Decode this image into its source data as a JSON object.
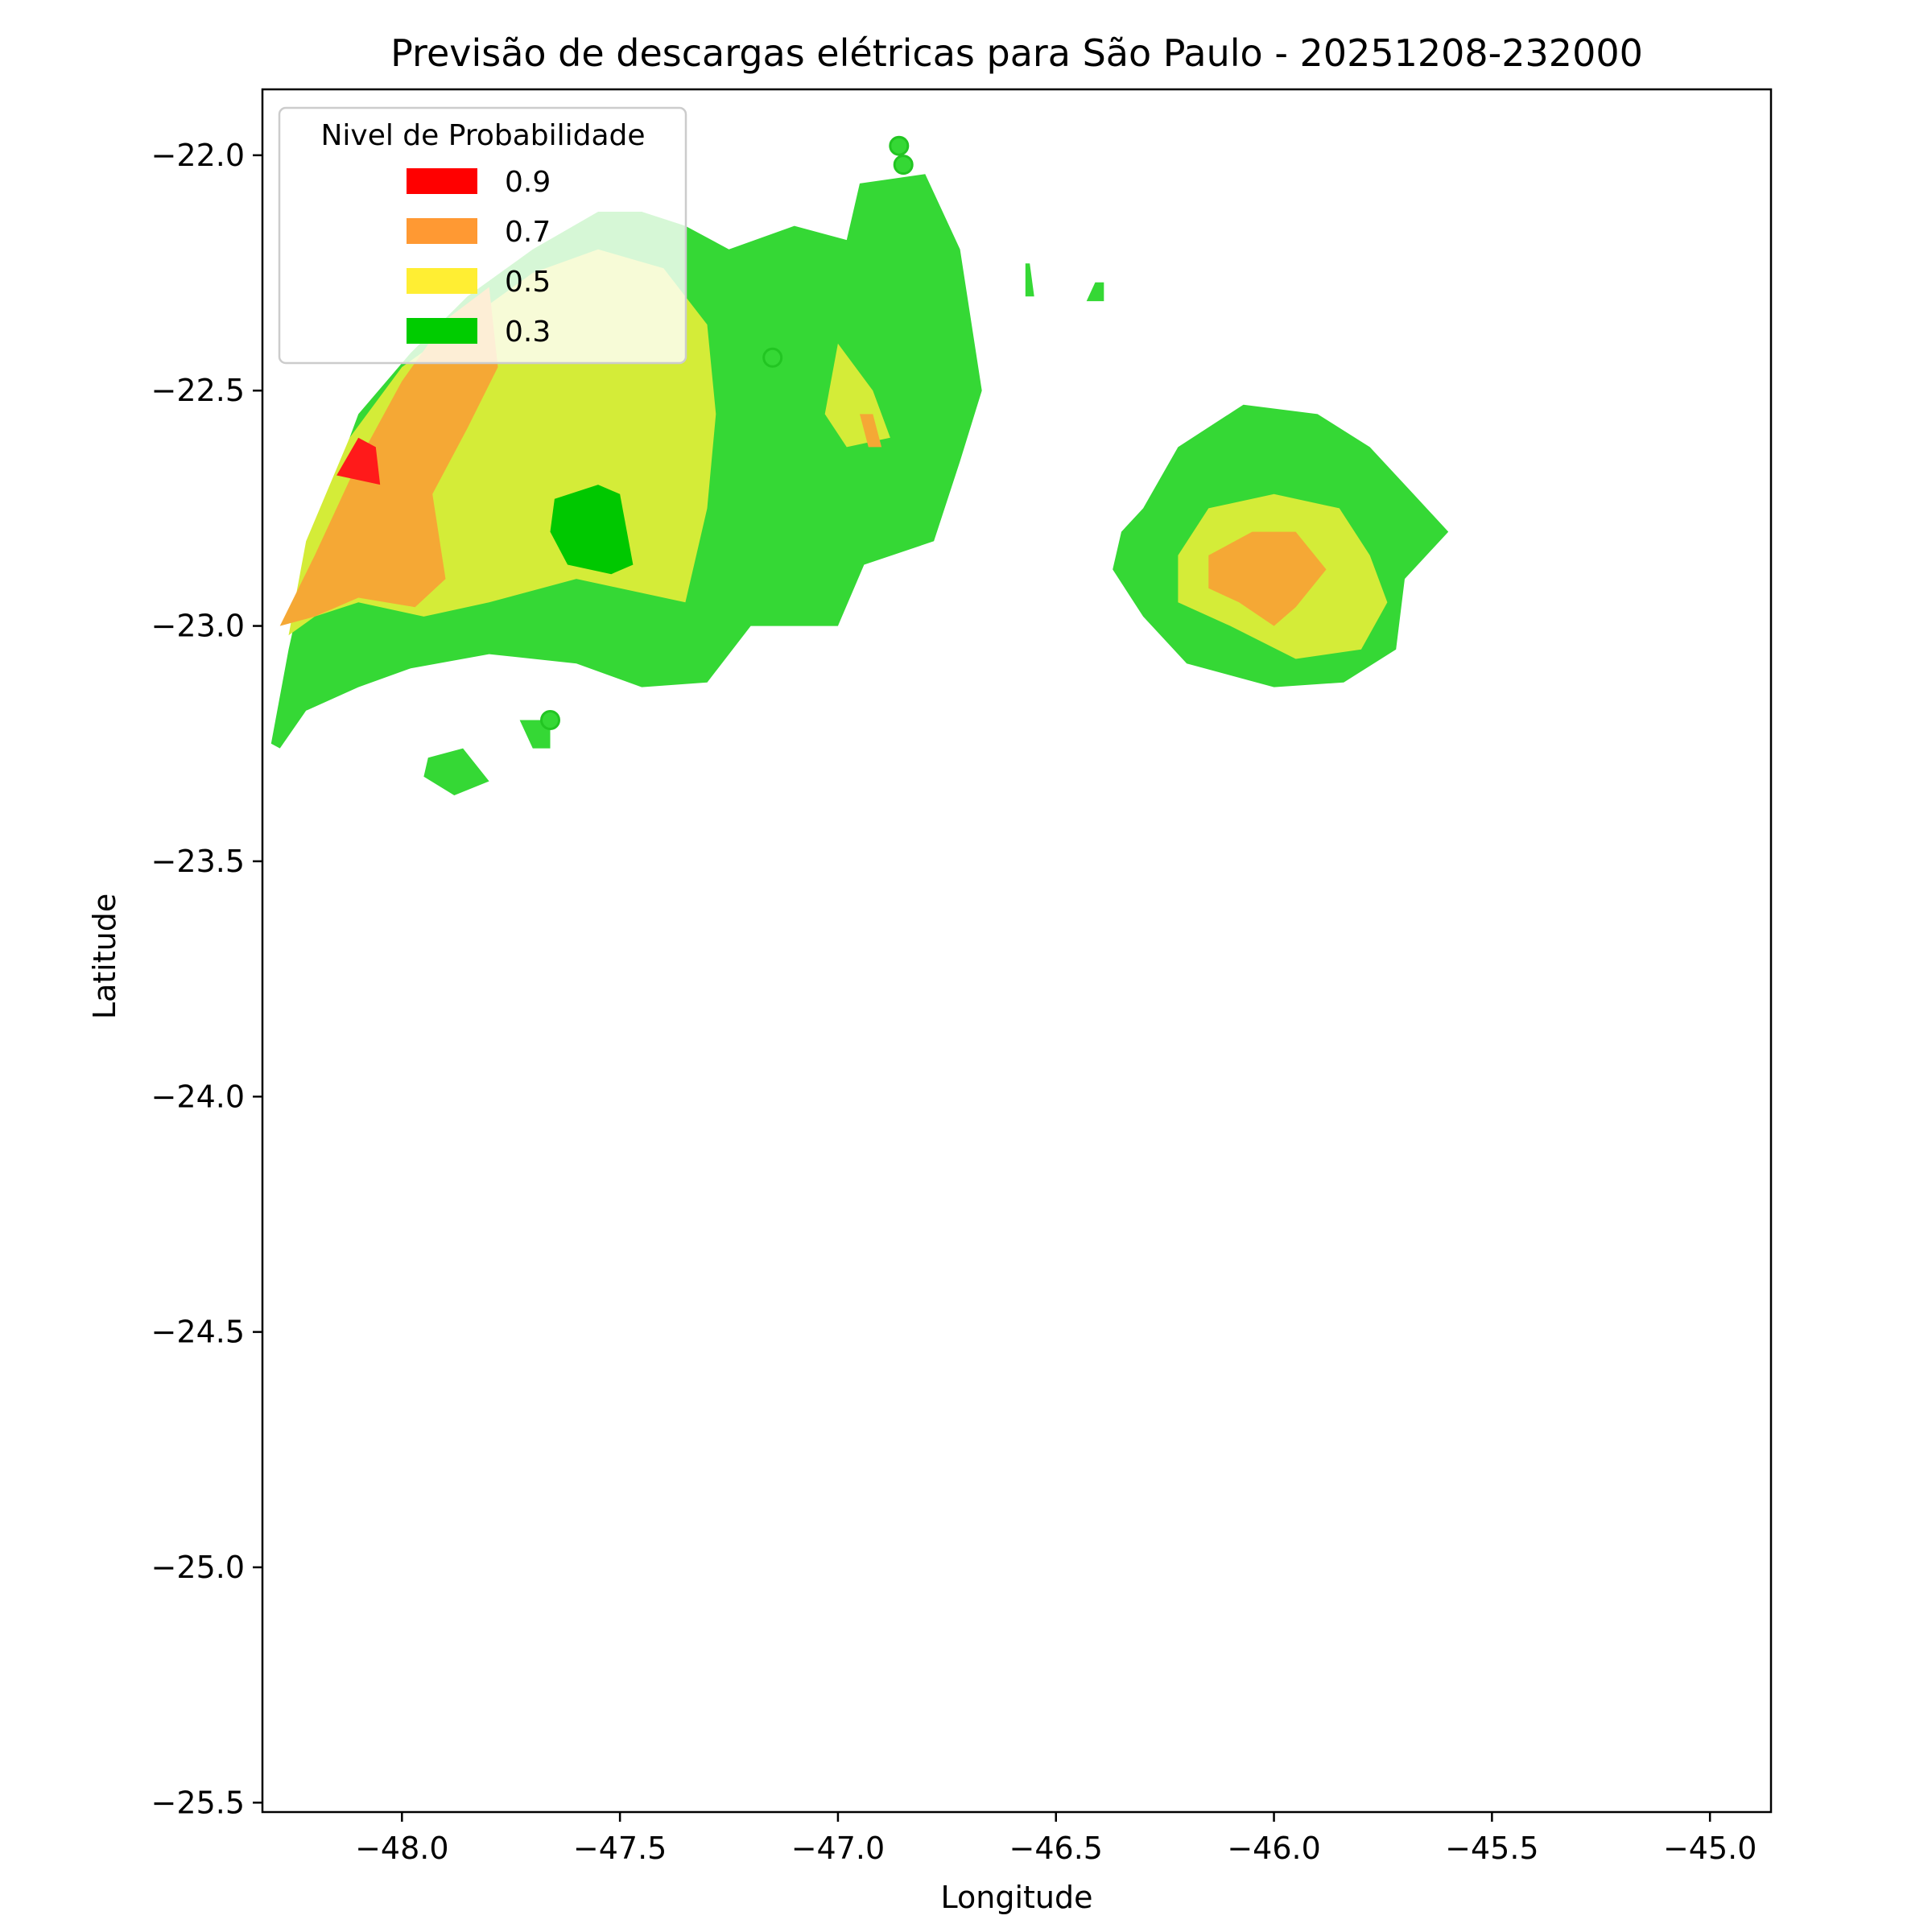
{
  "chart_data": {
    "type": "heatmap",
    "title": "Previsão de descargas elétricas para São Paulo - 20251208-232000",
    "xlabel": "Longitude",
    "ylabel": "Latitude",
    "xlim": [
      -48.32,
      -44.86
    ],
    "ylim": [
      -25.52,
      -21.86
    ],
    "x_ticks": [
      -48.0,
      -47.5,
      -47.0,
      -46.5,
      -46.0,
      -45.5,
      -45.0
    ],
    "x_tick_labels": [
      "−48.0",
      "−47.5",
      "−47.0",
      "−46.5",
      "−46.0",
      "−45.5",
      "−45.0"
    ],
    "y_ticks": [
      -22.0,
      -22.5,
      -23.0,
      -23.5,
      -24.0,
      -24.5,
      -25.0,
      -25.5
    ],
    "y_tick_labels": [
      "−22.0",
      "−22.5",
      "−23.0",
      "−23.5",
      "−24.0",
      "−24.5",
      "−25.0",
      "−25.5"
    ],
    "grid": false,
    "legend": {
      "title": "Nivel de Probabilidade",
      "placement": "upper-left",
      "entries": [
        {
          "label": "0.9",
          "color": "#ff0000"
        },
        {
          "label": "0.7",
          "color": "#ff9933"
        },
        {
          "label": "0.5",
          "color": "#ffee33"
        },
        {
          "label": "0.3",
          "color": "#00cc00"
        }
      ]
    },
    "levels": [
      {
        "level": 0.3,
        "color": "#35d835",
        "regions": [
          {
            "name": "west-storm-outer",
            "polygon": [
              [
                -48.3,
                -23.25
              ],
              [
                -48.26,
                -23.05
              ],
              [
                -48.2,
                -22.8
              ],
              [
                -48.1,
                -22.55
              ],
              [
                -47.98,
                -22.42
              ],
              [
                -47.85,
                -22.3
              ],
              [
                -47.7,
                -22.2
              ],
              [
                -47.55,
                -22.12
              ],
              [
                -47.45,
                -22.12
              ],
              [
                -47.35,
                -22.15
              ],
              [
                -47.25,
                -22.2
              ],
              [
                -47.1,
                -22.15
              ],
              [
                -46.98,
                -22.18
              ],
              [
                -46.95,
                -22.06
              ],
              [
                -46.8,
                -22.04
              ],
              [
                -46.72,
                -22.2
              ],
              [
                -46.67,
                -22.5
              ],
              [
                -46.72,
                -22.65
              ],
              [
                -46.78,
                -22.82
              ],
              [
                -46.94,
                -22.87
              ],
              [
                -47.0,
                -23.0
              ],
              [
                -47.2,
                -23.0
              ],
              [
                -47.3,
                -23.12
              ],
              [
                -47.45,
                -23.13
              ],
              [
                -47.6,
                -23.08
              ],
              [
                -47.8,
                -23.06
              ],
              [
                -47.98,
                -23.09
              ],
              [
                -48.1,
                -23.13
              ],
              [
                -48.22,
                -23.18
              ],
              [
                -48.28,
                -23.26
              ]
            ]
          },
          {
            "name": "east-storm-outer",
            "polygon": [
              [
                -46.3,
                -22.75
              ],
              [
                -46.22,
                -22.62
              ],
              [
                -46.07,
                -22.53
              ],
              [
                -45.9,
                -22.55
              ],
              [
                -45.78,
                -22.62
              ],
              [
                -45.68,
                -22.72
              ],
              [
                -45.6,
                -22.8
              ],
              [
                -45.7,
                -22.9
              ],
              [
                -45.72,
                -23.05
              ],
              [
                -45.84,
                -23.12
              ],
              [
                -46.0,
                -23.13
              ],
              [
                -46.2,
                -23.08
              ],
              [
                -46.3,
                -22.98
              ],
              [
                -46.37,
                -22.88
              ],
              [
                -46.35,
                -22.8
              ]
            ]
          },
          {
            "name": "south-fragment-1",
            "polygon": [
              [
                -47.94,
                -23.28
              ],
              [
                -47.86,
                -23.26
              ],
              [
                -47.8,
                -23.33
              ],
              [
                -47.88,
                -23.36
              ],
              [
                -47.95,
                -23.32
              ]
            ]
          },
          {
            "name": "south-fragment-2",
            "polygon": [
              [
                -47.73,
                -23.2
              ],
              [
                -47.66,
                -23.2
              ],
              [
                -47.66,
                -23.26
              ],
              [
                -47.7,
                -23.26
              ]
            ]
          },
          {
            "name": "north-fragment-1",
            "polygon": [
              [
                -46.57,
                -22.23
              ],
              [
                -46.56,
                -22.23
              ],
              [
                -46.55,
                -22.3
              ],
              [
                -46.57,
                -22.3
              ]
            ]
          },
          {
            "name": "north-fragment-2",
            "polygon": [
              [
                -46.41,
                -22.27
              ],
              [
                -46.39,
                -22.27
              ],
              [
                -46.39,
                -22.31
              ],
              [
                -46.43,
                -22.31
              ]
            ]
          }
        ],
        "dots": [
          [
            -46.86,
            -21.98
          ],
          [
            -46.85,
            -22.02
          ],
          [
            -47.15,
            -22.43
          ],
          [
            -47.66,
            -23.2
          ]
        ]
      },
      {
        "level": 0.5,
        "color": "#d4ec38",
        "regions": [
          {
            "name": "west-storm-yellow",
            "polygon": [
              [
                -48.26,
                -23.02
              ],
              [
                -48.22,
                -22.82
              ],
              [
                -48.12,
                -22.6
              ],
              [
                -48.0,
                -22.45
              ],
              [
                -47.85,
                -22.35
              ],
              [
                -47.7,
                -22.25
              ],
              [
                -47.55,
                -22.2
              ],
              [
                -47.4,
                -22.24
              ],
              [
                -47.3,
                -22.36
              ],
              [
                -47.28,
                -22.55
              ],
              [
                -47.3,
                -22.75
              ],
              [
                -47.35,
                -22.95
              ],
              [
                -47.6,
                -22.9
              ],
              [
                -47.8,
                -22.95
              ],
              [
                -47.95,
                -22.98
              ],
              [
                -48.1,
                -22.95
              ],
              [
                -48.2,
                -22.98
              ]
            ]
          },
          {
            "name": "east-storm-yellow",
            "polygon": [
              [
                -46.22,
                -22.85
              ],
              [
                -46.15,
                -22.75
              ],
              [
                -46.0,
                -22.72
              ],
              [
                -45.85,
                -22.75
              ],
              [
                -45.78,
                -22.85
              ],
              [
                -45.74,
                -22.95
              ],
              [
                -45.8,
                -23.05
              ],
              [
                -45.95,
                -23.07
              ],
              [
                -46.1,
                -23.0
              ],
              [
                -46.22,
                -22.95
              ]
            ]
          },
          {
            "name": "central-yellow-streak",
            "polygon": [
              [
                -47.0,
                -22.4
              ],
              [
                -46.92,
                -22.5
              ],
              [
                -46.88,
                -22.6
              ],
              [
                -46.98,
                -22.62
              ],
              [
                -47.03,
                -22.55
              ]
            ]
          }
        ]
      },
      {
        "level": 0.7,
        "color": "#f5a835",
        "regions": [
          {
            "name": "west-storm-orange",
            "polygon": [
              [
                -48.28,
                -23.0
              ],
              [
                -48.2,
                -22.85
              ],
              [
                -48.1,
                -22.65
              ],
              [
                -48.0,
                -22.48
              ],
              [
                -47.9,
                -22.35
              ],
              [
                -47.8,
                -22.28
              ],
              [
                -47.78,
                -22.45
              ],
              [
                -47.85,
                -22.58
              ],
              [
                -47.93,
                -22.72
              ],
              [
                -47.9,
                -22.9
              ],
              [
                -47.97,
                -22.96
              ],
              [
                -48.1,
                -22.94
              ],
              [
                -48.2,
                -22.98
              ]
            ]
          },
          {
            "name": "east-storm-orange",
            "polygon": [
              [
                -46.15,
                -22.85
              ],
              [
                -46.05,
                -22.8
              ],
              [
                -45.95,
                -22.8
              ],
              [
                -45.88,
                -22.88
              ],
              [
                -45.95,
                -22.96
              ],
              [
                -46.0,
                -23.0
              ],
              [
                -46.08,
                -22.95
              ],
              [
                -46.15,
                -22.92
              ]
            ]
          },
          {
            "name": "central-orange-streak",
            "polygon": [
              [
                -46.95,
                -22.55
              ],
              [
                -46.92,
                -22.55
              ],
              [
                -46.9,
                -22.62
              ],
              [
                -46.93,
                -22.62
              ]
            ]
          }
        ]
      },
      {
        "level": 0.9,
        "color": "#ff1a1a",
        "regions": [
          {
            "name": "west-storm-red",
            "polygon": [
              [
                -48.15,
                -22.68
              ],
              [
                -48.1,
                -22.6
              ],
              [
                -48.06,
                -22.62
              ],
              [
                -48.05,
                -22.7
              ]
            ]
          }
        ]
      },
      {
        "level": 0.3,
        "color": "#00c800",
        "regions": [
          {
            "name": "west-storm-core",
            "polygon": [
              [
                -47.65,
                -22.73
              ],
              [
                -47.55,
                -22.7
              ],
              [
                -47.5,
                -22.72
              ],
              [
                -47.47,
                -22.87
              ],
              [
                -47.52,
                -22.89
              ],
              [
                -47.62,
                -22.87
              ],
              [
                -47.66,
                -22.8
              ]
            ]
          }
        ]
      }
    ]
  }
}
